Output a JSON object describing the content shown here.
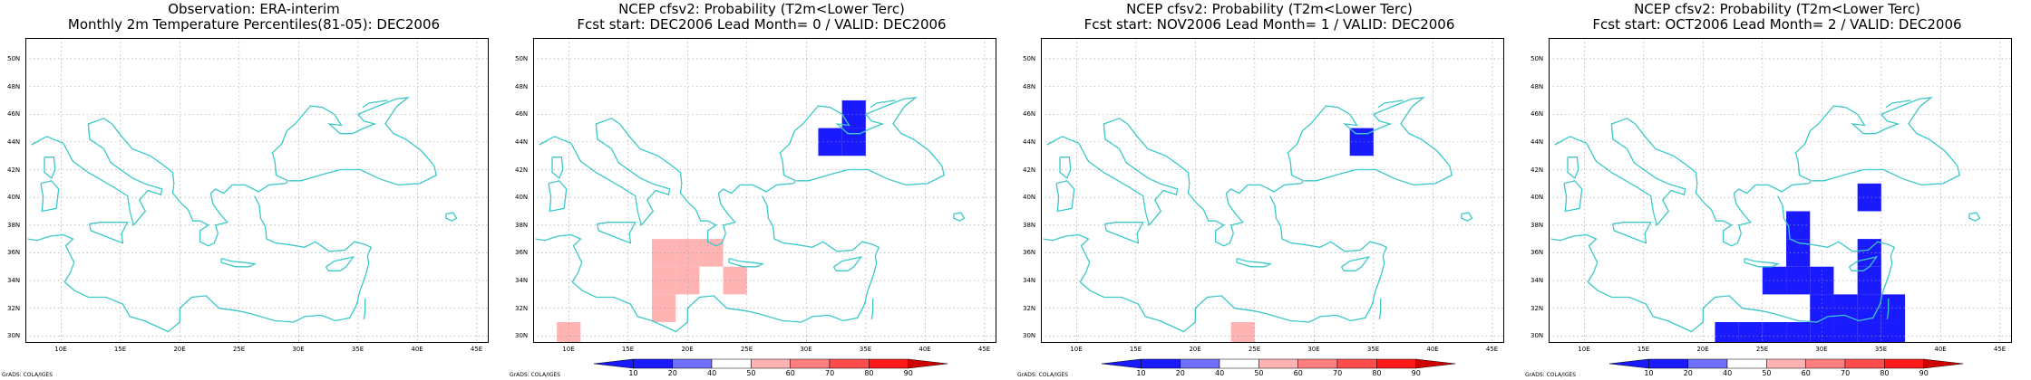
{
  "panels": [
    {
      "title_lines": [
        "Observation: ERA-interim",
        "Monthly 2m Temperature Percentiles(81-05): DEC2006"
      ],
      "cells": [],
      "has_colorbar": false
    },
    {
      "title_lines": [
        "NCEP cfsv2: Probability (T2m<Lower Terc)",
        "Fcst start: DEC2006   Lead Month= 0 / VALID: DEC2006"
      ],
      "cells": [
        {
          "lon": 24,
          "lat": 46,
          "p": 45
        },
        {
          "lon": 34,
          "lat": 46,
          "p": 10
        },
        {
          "lon": 32,
          "lat": 44,
          "p": 10
        },
        {
          "lon": 34,
          "lat": 44,
          "p": 10
        },
        {
          "lon": 8,
          "lat": 42,
          "p": 45
        },
        {
          "lon": 10,
          "lat": 42,
          "p": 45
        },
        {
          "lon": 12,
          "lat": 40,
          "p": 45
        },
        {
          "lon": 16,
          "lat": 42,
          "p": 45
        },
        {
          "lon": 18,
          "lat": 42,
          "p": 45
        },
        {
          "lon": 20,
          "lat": 42,
          "p": 45
        },
        {
          "lon": 16,
          "lat": 40,
          "p": 45
        },
        {
          "lon": 18,
          "lat": 40,
          "p": 45
        },
        {
          "lon": 20,
          "lat": 40,
          "p": 45
        },
        {
          "lon": 24,
          "lat": 40,
          "p": 45
        },
        {
          "lon": 26,
          "lat": 40,
          "p": 45
        },
        {
          "lon": 28,
          "lat": 40,
          "p": 45
        },
        {
          "lon": 30,
          "lat": 40,
          "p": 45
        },
        {
          "lon": 16,
          "lat": 38,
          "p": 45
        },
        {
          "lon": 18,
          "lat": 38,
          "p": 45
        },
        {
          "lon": 20,
          "lat": 38,
          "p": 45
        },
        {
          "lon": 22,
          "lat": 38,
          "p": 45
        },
        {
          "lon": 24,
          "lat": 38,
          "p": 45
        },
        {
          "lon": 26,
          "lat": 38,
          "p": 45
        },
        {
          "lon": 28,
          "lat": 38,
          "p": 45
        },
        {
          "lon": 30,
          "lat": 38,
          "p": 45
        },
        {
          "lon": 18,
          "lat": 36,
          "p": 55
        },
        {
          "lon": 20,
          "lat": 36,
          "p": 55
        },
        {
          "lon": 22,
          "lat": 36,
          "p": 55
        },
        {
          "lon": 24,
          "lat": 36,
          "p": 45
        },
        {
          "lon": 26,
          "lat": 36,
          "p": 45
        },
        {
          "lon": 28,
          "lat": 36,
          "p": 45
        },
        {
          "lon": 30,
          "lat": 36,
          "p": 45
        },
        {
          "lon": 36,
          "lat": 36,
          "p": 45
        },
        {
          "lon": 44,
          "lat": 36,
          "p": 45
        },
        {
          "lon": 16,
          "lat": 34,
          "p": 45
        },
        {
          "lon": 18,
          "lat": 34,
          "p": 55
        },
        {
          "lon": 20,
          "lat": 34,
          "p": 55
        },
        {
          "lon": 22,
          "lat": 34,
          "p": 45
        },
        {
          "lon": 24,
          "lat": 34,
          "p": 55
        },
        {
          "lon": 26,
          "lat": 34,
          "p": 45
        },
        {
          "lon": 28,
          "lat": 34,
          "p": 45
        },
        {
          "lon": 30,
          "lat": 34,
          "p": 45
        },
        {
          "lon": 32,
          "lat": 34,
          "p": 45
        },
        {
          "lon": 44,
          "lat": 34,
          "p": 45
        },
        {
          "lon": 16,
          "lat": 32,
          "p": 45
        },
        {
          "lon": 18,
          "lat": 32,
          "p": 55
        },
        {
          "lon": 20,
          "lat": 32,
          "p": 45
        },
        {
          "lon": 22,
          "lat": 32,
          "p": 45
        },
        {
          "lon": 24,
          "lat": 32,
          "p": 45
        },
        {
          "lon": 26,
          "lat": 32,
          "p": 45
        },
        {
          "lon": 28,
          "lat": 32,
          "p": 45
        },
        {
          "lon": 30,
          "lat": 32,
          "p": 45
        },
        {
          "lon": 32,
          "lat": 32,
          "p": 45
        },
        {
          "lon": 34,
          "lat": 32,
          "p": 45
        },
        {
          "lon": 10,
          "lat": 30,
          "p": 55
        },
        {
          "lon": 12,
          "lat": 30,
          "p": 45
        },
        {
          "lon": 18,
          "lat": 30,
          "p": 45
        },
        {
          "lon": 20,
          "lat": 30,
          "p": 45
        },
        {
          "lon": 22,
          "lat": 30,
          "p": 45
        },
        {
          "lon": 24,
          "lat": 30,
          "p": 45
        },
        {
          "lon": 26,
          "lat": 30,
          "p": 45
        },
        {
          "lon": 28,
          "lat": 30,
          "p": 45
        },
        {
          "lon": 30,
          "lat": 30,
          "p": 45
        },
        {
          "lon": 32,
          "lat": 30,
          "p": 45
        },
        {
          "lon": 34,
          "lat": 30,
          "p": 45
        },
        {
          "lon": 40,
          "lat": 30,
          "p": 45
        }
      ],
      "has_colorbar": true
    },
    {
      "title_lines": [
        "NCEP cfsv2: Probability (T2m<Lower Terc)",
        "Fcst start: NOV2006   Lead Month= 1 / VALID: DEC2006"
      ],
      "cells": [
        {
          "lon": 34,
          "lat": 44,
          "p": 10
        },
        {
          "lon": 16,
          "lat": 42,
          "p": 45
        },
        {
          "lon": 18,
          "lat": 42,
          "p": 45
        },
        {
          "lon": 24,
          "lat": 40,
          "p": 45
        },
        {
          "lon": 26,
          "lat": 40,
          "p": 45
        },
        {
          "lon": 28,
          "lat": 40,
          "p": 45
        },
        {
          "lon": 22,
          "lat": 38,
          "p": 45
        },
        {
          "lon": 24,
          "lat": 38,
          "p": 45
        },
        {
          "lon": 26,
          "lat": 38,
          "p": 45
        },
        {
          "lon": 28,
          "lat": 38,
          "p": 45
        },
        {
          "lon": 20,
          "lat": 36,
          "p": 45
        },
        {
          "lon": 22,
          "lat": 36,
          "p": 45
        },
        {
          "lon": 24,
          "lat": 36,
          "p": 45
        },
        {
          "lon": 26,
          "lat": 36,
          "p": 45
        },
        {
          "lon": 28,
          "lat": 36,
          "p": 45
        },
        {
          "lon": 30,
          "lat": 36,
          "p": 45
        },
        {
          "lon": 14,
          "lat": 34,
          "p": 45
        },
        {
          "lon": 16,
          "lat": 34,
          "p": 45
        },
        {
          "lon": 24,
          "lat": 34,
          "p": 45
        },
        {
          "lon": 26,
          "lat": 34,
          "p": 45
        },
        {
          "lon": 28,
          "lat": 34,
          "p": 45
        },
        {
          "lon": 30,
          "lat": 34,
          "p": 45
        },
        {
          "lon": 12,
          "lat": 32,
          "p": 45
        },
        {
          "lon": 16,
          "lat": 32,
          "p": 45
        },
        {
          "lon": 24,
          "lat": 32,
          "p": 45
        },
        {
          "lon": 26,
          "lat": 32,
          "p": 45
        },
        {
          "lon": 28,
          "lat": 32,
          "p": 45
        },
        {
          "lon": 16,
          "lat": 30,
          "p": 45
        },
        {
          "lon": 24,
          "lat": 30,
          "p": 55
        },
        {
          "lon": 26,
          "lat": 30,
          "p": 45
        },
        {
          "lon": 28,
          "lat": 30,
          "p": 45
        }
      ],
      "has_colorbar": true
    },
    {
      "title_lines": [
        "NCEP cfsv2: Probability (T2m<Lower Terc)",
        "Fcst start: OCT2006   Lead Month= 2 / VALID: DEC2006"
      ],
      "cells": [
        {
          "lon": 20,
          "lat": 50,
          "p": 45
        },
        {
          "lon": 8,
          "lat": 46,
          "p": 45
        },
        {
          "lon": 10,
          "lat": 46,
          "p": 45
        },
        {
          "lon": 12,
          "lat": 46,
          "p": 45
        },
        {
          "lon": 8,
          "lat": 44,
          "p": 45
        },
        {
          "lon": 10,
          "lat": 44,
          "p": 45
        },
        {
          "lon": 18,
          "lat": 44,
          "p": 45
        },
        {
          "lon": 20,
          "lat": 44,
          "p": 45
        },
        {
          "lon": 8,
          "lat": 42,
          "p": 45
        },
        {
          "lon": 10,
          "lat": 42,
          "p": 45
        },
        {
          "lon": 12,
          "lat": 42,
          "p": 45
        },
        {
          "lon": 14,
          "lat": 42,
          "p": 45
        },
        {
          "lon": 16,
          "lat": 42,
          "p": 45
        },
        {
          "lon": 18,
          "lat": 42,
          "p": 45
        },
        {
          "lon": 20,
          "lat": 42,
          "p": 45
        },
        {
          "lon": 8,
          "lat": 40,
          "p": 45
        },
        {
          "lon": 10,
          "lat": 40,
          "p": 45
        },
        {
          "lon": 12,
          "lat": 40,
          "p": 45
        },
        {
          "lon": 14,
          "lat": 40,
          "p": 45
        },
        {
          "lon": 16,
          "lat": 40,
          "p": 45
        },
        {
          "lon": 18,
          "lat": 40,
          "p": 45
        },
        {
          "lon": 20,
          "lat": 40,
          "p": 45
        },
        {
          "lon": 12,
          "lat": 38,
          "p": 45
        },
        {
          "lon": 34,
          "lat": 40,
          "p": 10
        },
        {
          "lon": 28,
          "lat": 38,
          "p": 10
        },
        {
          "lon": 28,
          "lat": 36,
          "p": 10
        },
        {
          "lon": 34,
          "lat": 36,
          "p": 10
        },
        {
          "lon": 26,
          "lat": 34,
          "p": 10
        },
        {
          "lon": 28,
          "lat": 34,
          "p": 10
        },
        {
          "lon": 30,
          "lat": 34,
          "p": 10
        },
        {
          "lon": 34,
          "lat": 34,
          "p": 10
        },
        {
          "lon": 30,
          "lat": 32,
          "p": 10
        },
        {
          "lon": 32,
          "lat": 32,
          "p": 10
        },
        {
          "lon": 34,
          "lat": 32,
          "p": 10
        },
        {
          "lon": 36,
          "lat": 32,
          "p": 10
        },
        {
          "lon": 12,
          "lat": 30,
          "p": 45
        },
        {
          "lon": 22,
          "lat": 30,
          "p": 10
        },
        {
          "lon": 24,
          "lat": 30,
          "p": 10
        },
        {
          "lon": 26,
          "lat": 30,
          "p": 10
        },
        {
          "lon": 28,
          "lat": 30,
          "p": 10
        },
        {
          "lon": 30,
          "lat": 30,
          "p": 10
        },
        {
          "lon": 32,
          "lat": 30,
          "p": 10
        },
        {
          "lon": 34,
          "lat": 30,
          "p": 10
        },
        {
          "lon": 36,
          "lat": 30,
          "p": 10
        }
      ],
      "has_colorbar": true
    }
  ],
  "map": {
    "lon_range": [
      7,
      46
    ],
    "lat_range": [
      29.5,
      51.5
    ],
    "lon_ticks": [
      10,
      15,
      20,
      25,
      30,
      35,
      40,
      45
    ],
    "lon_tick_labels": [
      "10E",
      "15E",
      "20E",
      "25E",
      "30E",
      "35E",
      "40E",
      "45E"
    ],
    "lat_ticks": [
      30,
      32,
      34,
      36,
      38,
      40,
      42,
      44,
      46,
      48,
      50
    ],
    "lat_tick_labels": [
      "30N",
      "32N",
      "34N",
      "36N",
      "38N",
      "40N",
      "42N",
      "44N",
      "46N",
      "48N",
      "50N"
    ],
    "grid": true
  },
  "colorbar": {
    "labels": [
      "10",
      "20",
      "40",
      "50",
      "60",
      "70",
      "80",
      "90"
    ],
    "colors": [
      "#1a1aff",
      "#6f6fff",
      "#ffffff",
      "#ffb3b3",
      "#ff7f7f",
      "#ff4d4d",
      "#ff1a1a",
      "#d10000"
    ]
  },
  "footer_label": "GrADS: COLA/IGES",
  "colors": {
    "coast": "#3cc8c8",
    "grid": "#9a9a9a"
  }
}
